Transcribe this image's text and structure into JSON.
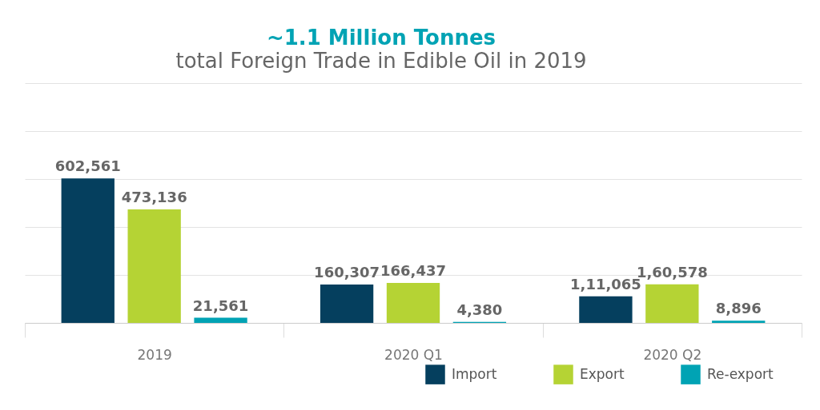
{
  "chart_data": {
    "type": "bar",
    "title": "~1.1 Million Tonnes",
    "subtitle": "total Foreign Trade in Edible Oil in 2019",
    "categories": [
      "2019",
      "2020 Q1",
      "2020 Q2"
    ],
    "series": [
      {
        "name": "Import",
        "color": "#053f5e",
        "values": [
          602561,
          160307,
          111065
        ],
        "value_labels": [
          "602,561",
          "160,307",
          "1,11,065"
        ]
      },
      {
        "name": "Export",
        "color": "#b5d334",
        "values": [
          473136,
          166437,
          160578
        ],
        "value_labels": [
          "473,136",
          "166,437",
          "1,60,578"
        ]
      },
      {
        "name": "Re-export",
        "color": "#00a3b4",
        "values": [
          21561,
          4380,
          8896
        ],
        "value_labels": [
          "21,561",
          "4,380",
          "8,896"
        ]
      }
    ],
    "ylim": [
      0,
      1000000
    ],
    "yticks": [
      {
        "value": 0,
        "label": null
      },
      {
        "value": 200000,
        "label": null
      },
      {
        "value": 400000,
        "label": null
      },
      {
        "value": 600000,
        "label": null
      },
      {
        "value": 800000,
        "label": null
      },
      {
        "value": 1000000,
        "label": null
      }
    ],
    "grid": "y",
    "legend": "bottom right",
    "tick_labels": "x"
  }
}
